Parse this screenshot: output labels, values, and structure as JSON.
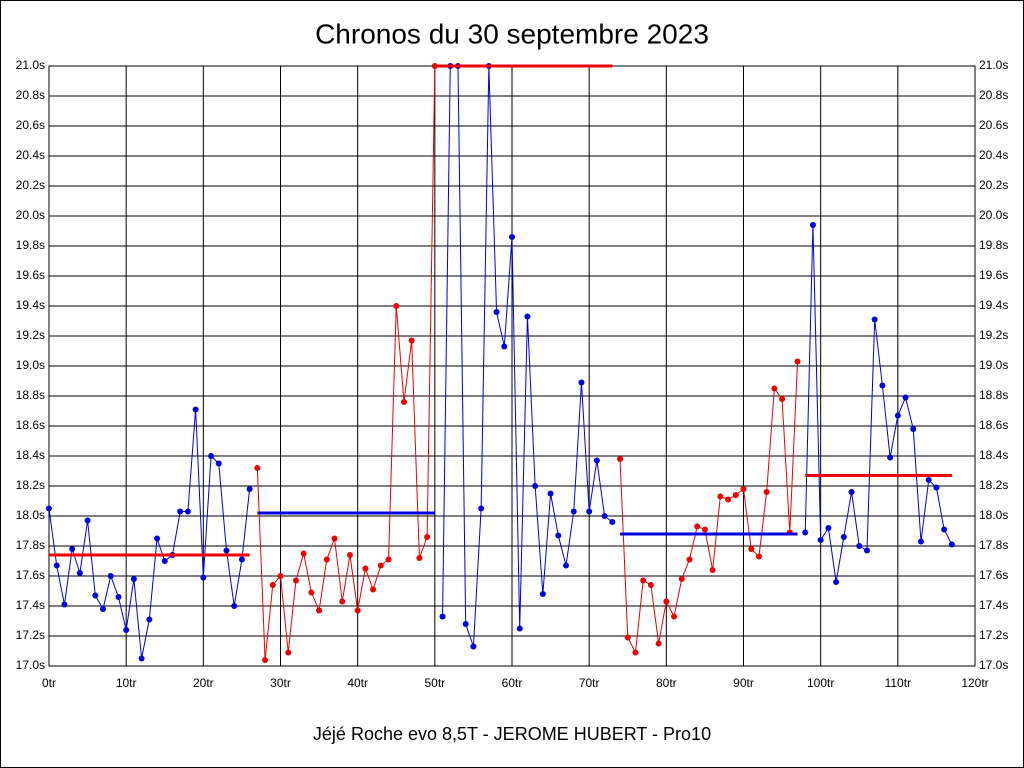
{
  "chart_data": {
    "type": "line",
    "title": "Chronos du 30 septembre 2023",
    "footer": "Jéjé Roche evo 8,5T - JEROME HUBERT - Pro10",
    "xlim": [
      0,
      120
    ],
    "xticks": [
      {
        "value": 0,
        "label": "0tr"
      },
      {
        "value": 10,
        "label": "10tr"
      },
      {
        "value": 20,
        "label": "20tr"
      },
      {
        "value": 30,
        "label": "30tr"
      },
      {
        "value": 40,
        "label": "40tr"
      },
      {
        "value": 50,
        "label": "50tr"
      },
      {
        "value": 60,
        "label": "60tr"
      },
      {
        "value": 70,
        "label": "70tr"
      },
      {
        "value": 80,
        "label": "80tr"
      },
      {
        "value": 90,
        "label": "90tr"
      },
      {
        "value": 100,
        "label": "100tr"
      },
      {
        "value": 110,
        "label": "110tr"
      },
      {
        "value": 120,
        "label": "120tr"
      }
    ],
    "ylim": [
      17.0,
      21.0
    ],
    "yticks": [
      {
        "value": 17.0,
        "label": "17.0s"
      },
      {
        "value": 17.2,
        "label": "17.2s"
      },
      {
        "value": 17.4,
        "label": "17.4s"
      },
      {
        "value": 17.6,
        "label": "17.6s"
      },
      {
        "value": 17.8,
        "label": "17.8s"
      },
      {
        "value": 18.0,
        "label": "18.0s"
      },
      {
        "value": 18.2,
        "label": "18.2s"
      },
      {
        "value": 18.4,
        "label": "18.4s"
      },
      {
        "value": 18.6,
        "label": "18.6s"
      },
      {
        "value": 18.8,
        "label": "18.8s"
      },
      {
        "value": 19.0,
        "label": "19.0s"
      },
      {
        "value": 19.2,
        "label": "19.2s"
      },
      {
        "value": 19.4,
        "label": "19.4s"
      },
      {
        "value": 19.6,
        "label": "19.6s"
      },
      {
        "value": 19.8,
        "label": "19.8s"
      },
      {
        "value": 20.0,
        "label": "20.0s"
      },
      {
        "value": 20.2,
        "label": "20.2s"
      },
      {
        "value": 20.4,
        "label": "20.4s"
      },
      {
        "value": 20.6,
        "label": "20.6s"
      },
      {
        "value": 20.8,
        "label": "20.8s"
      },
      {
        "value": 21.0,
        "label": "21.0s"
      }
    ],
    "grid": true,
    "series": [
      {
        "color": "#0000dd",
        "x": [
          0,
          1,
          2,
          3,
          4,
          5,
          6,
          7,
          8,
          9,
          10,
          11,
          12,
          13,
          14,
          15,
          16,
          17,
          18,
          19,
          20,
          21,
          22,
          23,
          24,
          25,
          26
        ],
        "values": [
          18.05,
          17.67,
          17.41,
          17.78,
          17.62,
          17.97,
          17.47,
          17.38,
          17.6,
          17.46,
          17.24,
          17.58,
          17.05,
          17.31,
          17.85,
          17.7,
          17.74,
          18.03,
          18.03,
          18.71,
          17.59,
          18.4,
          18.35,
          17.77,
          17.4,
          17.71,
          18.18
        ]
      },
      {
        "color": "#ee0000",
        "x": [
          27,
          28,
          29,
          30,
          31,
          32,
          33,
          34,
          35,
          36,
          37,
          38,
          39,
          40,
          41,
          42,
          43,
          44,
          45,
          46,
          47,
          48,
          49,
          50
        ],
        "values": [
          18.32,
          17.04,
          17.54,
          17.6,
          17.09,
          17.57,
          17.75,
          17.49,
          17.37,
          17.71,
          17.85,
          17.43,
          17.74,
          17.37,
          17.65,
          17.51,
          17.67,
          17.71,
          19.4,
          18.76,
          19.17,
          17.72,
          17.86,
          21.0
        ]
      },
      {
        "color": "#0000dd",
        "x": [
          51,
          52,
          53,
          54,
          55,
          56,
          57,
          58,
          59,
          60,
          61,
          62,
          63,
          64,
          65,
          66,
          67,
          68,
          69,
          70,
          71,
          72,
          73
        ],
        "values": [
          17.33,
          21.0,
          21.0,
          17.28,
          17.13,
          18.05,
          21.0,
          19.36,
          19.13,
          19.86,
          17.25,
          19.33,
          18.2,
          17.48,
          18.15,
          17.87,
          17.67,
          18.03,
          18.89,
          18.03,
          18.37,
          18.0,
          17.96
        ]
      },
      {
        "color": "#ee0000",
        "x": [
          74,
          75,
          76,
          77,
          78,
          79,
          80,
          81,
          82,
          83,
          84,
          85,
          86,
          87,
          88,
          89,
          90,
          91,
          92,
          93,
          94,
          95,
          96,
          97
        ],
        "values": [
          18.38,
          17.19,
          17.09,
          17.57,
          17.54,
          17.15,
          17.43,
          17.33,
          17.58,
          17.71,
          17.93,
          17.91,
          17.64,
          18.13,
          18.11,
          18.14,
          18.18,
          17.78,
          17.73,
          18.16,
          18.85,
          18.78,
          17.89,
          19.03
        ]
      },
      {
        "color": "#0000dd",
        "x": [
          98,
          99,
          100,
          101,
          102,
          103,
          104,
          105,
          106,
          107,
          108,
          109,
          110,
          111,
          112,
          113,
          114,
          115,
          116,
          117
        ],
        "values": [
          17.89,
          19.94,
          17.84,
          17.92,
          17.56,
          17.86,
          18.16,
          17.8,
          17.77,
          19.31,
          18.87,
          18.39,
          18.67,
          18.79,
          18.58,
          17.83,
          18.24,
          18.19,
          17.91,
          17.81
        ]
      }
    ],
    "reference_lines": [
      {
        "color": "#ee0000",
        "x": [
          0,
          26
        ],
        "value": 17.74
      },
      {
        "color": "#0000dd",
        "x": [
          27,
          50
        ],
        "value": 18.02
      },
      {
        "color": "#ee0000",
        "x": [
          50,
          73
        ],
        "value": 21.0
      },
      {
        "color": "#0000dd",
        "x": [
          74,
          97
        ],
        "value": 17.88
      },
      {
        "color": "#ee0000",
        "x": [
          98,
          117
        ],
        "value": 18.27
      }
    ]
  }
}
